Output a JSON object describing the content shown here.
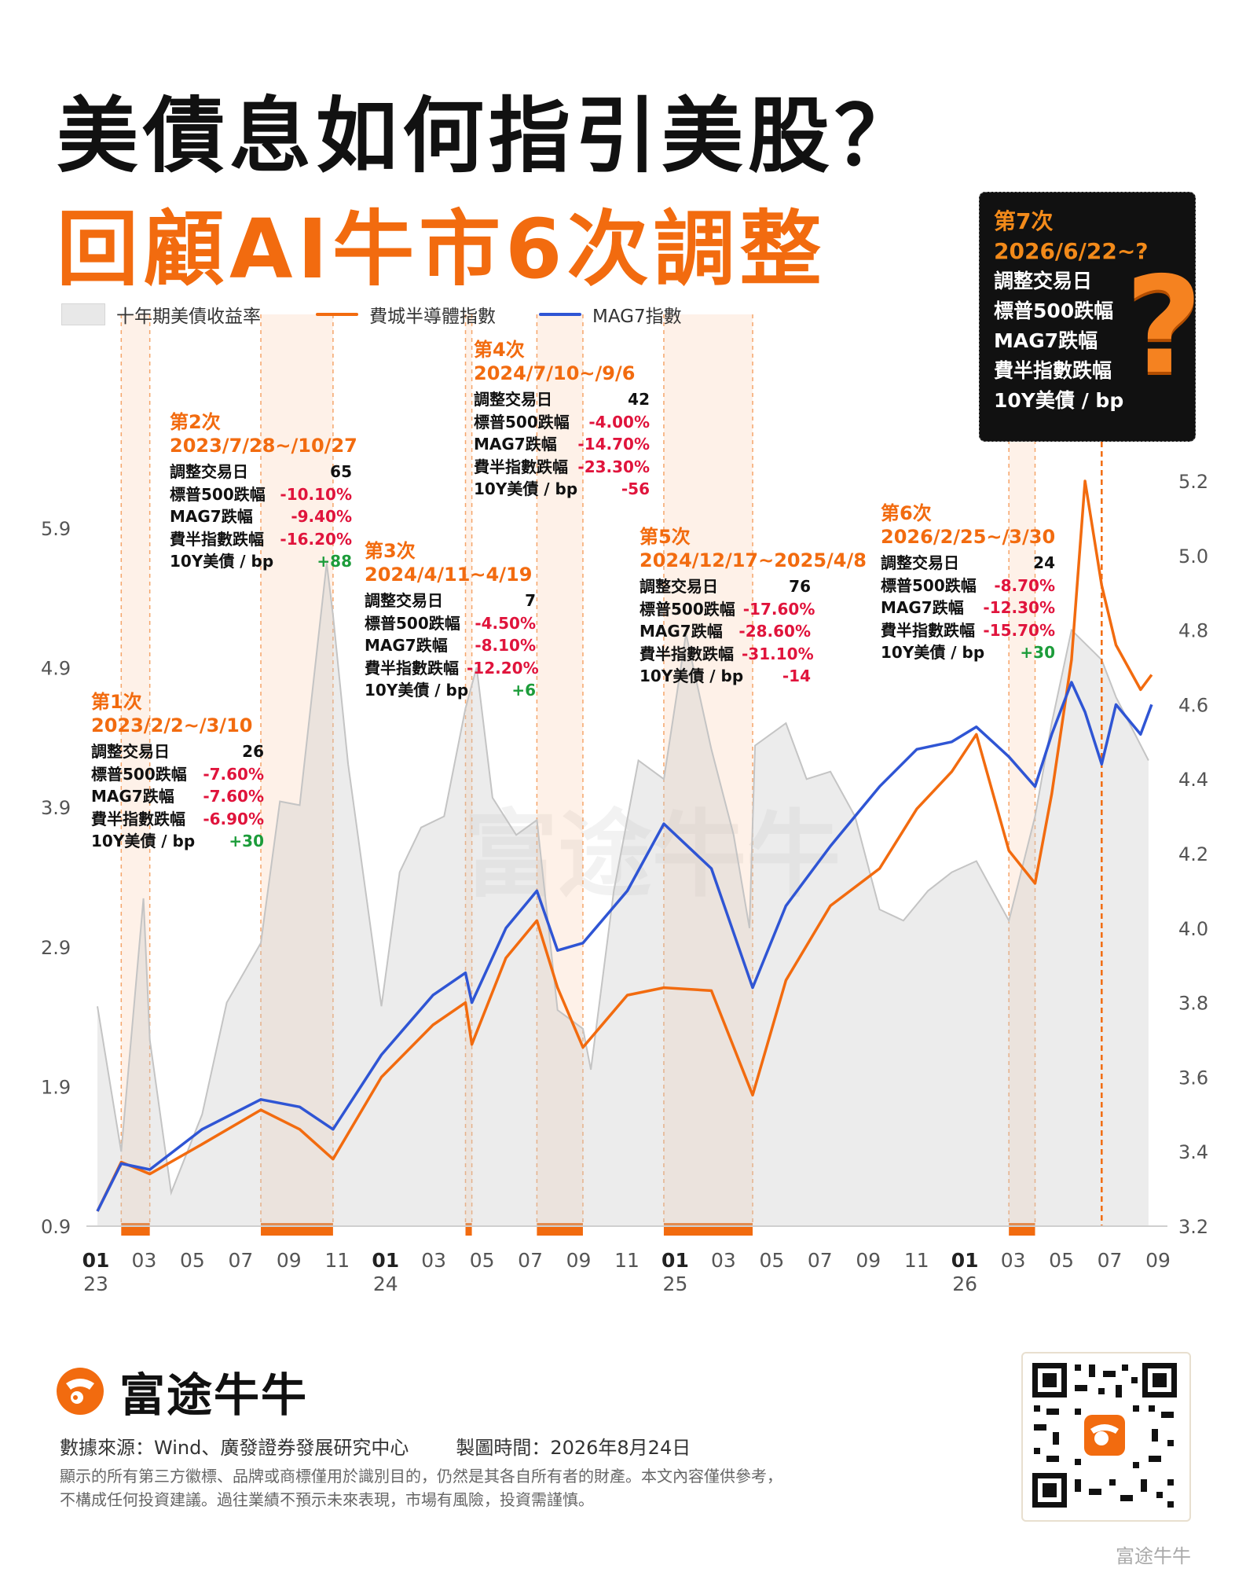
{
  "title_line1": "美債息如何指引美股？",
  "title_line2": "回顧AI牛市6次調整",
  "legend": [
    {
      "label": "十年期美債收益率",
      "color": "#e6e6e6",
      "kind": "area"
    },
    {
      "label": "費城半導體指數",
      "color": "#f26b0f",
      "kind": "line"
    },
    {
      "label": "MAG7指數",
      "color": "#2f55d4",
      "kind": "line"
    }
  ],
  "colors": {
    "accent": "#f26b0f",
    "negative": "#e0143c",
    "positive": "#1c9c3a",
    "mag7": "#2f55d4",
    "yield_area": "#e6e6e6"
  },
  "row_labels": {
    "days": "調整交易日",
    "sp500": "標普500跌幅",
    "mag7": "MAG7跌幅",
    "sox": "費半指數跌幅",
    "yield": "10Y美債 / bp"
  },
  "corrections": [
    {
      "name": "第1次",
      "range": "2023/2/2~/3/10",
      "days": "26",
      "sp500": "-7.60%",
      "mag7": "-7.60%",
      "sox": "-6.90%",
      "yield": "+30"
    },
    {
      "name": "第2次",
      "range": "2023/7/28~/10/27",
      "days": "65",
      "sp500": "-10.10%",
      "mag7": "-9.40%",
      "sox": "-16.20%",
      "yield": "+88"
    },
    {
      "name": "第3次",
      "range": "2024/4/11~4/19",
      "days": "7",
      "sp500": "-4.50%",
      "mag7": "-8.10%",
      "sox": "-12.20%",
      "yield": "+6"
    },
    {
      "name": "第4次",
      "range": "2024/7/10~/9/6",
      "days": "42",
      "sp500": "-4.00%",
      "mag7": "-14.70%",
      "sox": "-23.30%",
      "yield": "-56"
    },
    {
      "name": "第5次",
      "range": "2024/12/17~2025/4/8",
      "days": "76",
      "sp500": "-17.60%",
      "mag7": "-28.60%",
      "sox": "-31.10%",
      "yield": "-14"
    },
    {
      "name": "第6次",
      "range": "2026/2/25~/3/30",
      "days": "24",
      "sp500": "-8.70%",
      "mag7": "-12.30%",
      "sox": "-15.70%",
      "yield": "+30"
    }
  ],
  "next_correction": {
    "name": "第7次",
    "range": "2026/6/22~?",
    "rows": [
      "調整交易日",
      "標普500跌幅",
      "MAG7跌幅",
      "費半指數跌幅",
      "10Y美債 / bp"
    ],
    "mark": "?"
  },
  "chart_data": {
    "type": "line",
    "x_ticks": [
      {
        "m": "01",
        "y": "23"
      },
      {
        "m": "03",
        "y": ""
      },
      {
        "m": "05",
        "y": ""
      },
      {
        "m": "07",
        "y": ""
      },
      {
        "m": "09",
        "y": ""
      },
      {
        "m": "11",
        "y": ""
      },
      {
        "m": "01",
        "y": "24"
      },
      {
        "m": "03",
        "y": ""
      },
      {
        "m": "05",
        "y": ""
      },
      {
        "m": "07",
        "y": ""
      },
      {
        "m": "09",
        "y": ""
      },
      {
        "m": "11",
        "y": ""
      },
      {
        "m": "01",
        "y": "25"
      },
      {
        "m": "03",
        "y": ""
      },
      {
        "m": "05",
        "y": ""
      },
      {
        "m": "07",
        "y": ""
      },
      {
        "m": "09",
        "y": ""
      },
      {
        "m": "11",
        "y": ""
      },
      {
        "m": "01",
        "y": "26"
      },
      {
        "m": "03",
        "y": ""
      },
      {
        "m": "05",
        "y": ""
      },
      {
        "m": "07",
        "y": ""
      },
      {
        "m": "09",
        "y": ""
      }
    ],
    "y_left_ticks": [
      "5.9",
      "4.9",
      "3.9",
      "2.9",
      "1.9",
      "0.9"
    ],
    "y_right_ticks": [
      "5.2",
      "5.0",
      "4.8",
      "4.6",
      "4.4",
      "4.2",
      "4.0",
      "3.8",
      "3.6",
      "3.4",
      "3.2"
    ],
    "y_left_range": [
      0.9,
      5.9
    ],
    "y_right_range": [
      3.2,
      5.2
    ],
    "x_range": [
      "2023-01-01",
      "2026-09-01"
    ],
    "shaded_periods": [
      [
        "2023-02-02",
        "2023-03-10"
      ],
      [
        "2023-07-28",
        "2023-10-27"
      ],
      [
        "2024-04-11",
        "2024-04-19"
      ],
      [
        "2024-07-10",
        "2024-09-06"
      ],
      [
        "2024-12-17",
        "2025-04-08"
      ],
      [
        "2026-02-25",
        "2026-03-30"
      ]
    ],
    "current_marker": "2026-06-22",
    "series": [
      {
        "name": "十年期美債收益率",
        "axis": "right",
        "x": [
          "2023-01-03",
          "2023-02-02",
          "2023-03-02",
          "2023-03-10",
          "2023-04-06",
          "2023-05-15",
          "2023-06-15",
          "2023-07-28",
          "2023-08-21",
          "2023-09-15",
          "2023-10-19",
          "2023-10-27",
          "2023-11-15",
          "2023-12-27",
          "2024-01-19",
          "2024-02-15",
          "2024-03-15",
          "2024-04-11",
          "2024-04-25",
          "2024-05-15",
          "2024-06-14",
          "2024-07-10",
          "2024-08-05",
          "2024-09-06",
          "2024-09-16",
          "2024-10-15",
          "2024-11-15",
          "2024-12-17",
          "2025-01-14",
          "2025-02-15",
          "2025-03-15",
          "2025-04-04",
          "2025-04-08",
          "2025-04-11",
          "2025-05-20",
          "2025-06-15",
          "2025-07-15",
          "2025-08-15",
          "2025-09-15",
          "2025-10-15",
          "2025-11-15",
          "2025-12-15",
          "2026-01-15",
          "2026-02-25",
          "2026-03-30",
          "2026-04-20",
          "2026-05-15",
          "2026-06-22",
          "2026-07-10",
          "2026-08-20"
        ],
        "values": [
          3.79,
          3.4,
          4.08,
          3.7,
          3.29,
          3.5,
          3.8,
          3.96,
          4.34,
          4.33,
          4.98,
          4.84,
          4.44,
          3.79,
          4.15,
          4.27,
          4.3,
          4.59,
          4.7,
          4.35,
          4.25,
          4.29,
          3.78,
          3.73,
          3.62,
          4.1,
          4.45,
          4.4,
          4.79,
          4.48,
          4.25,
          4.0,
          4.28,
          4.49,
          4.55,
          4.4,
          4.42,
          4.3,
          4.05,
          4.02,
          4.1,
          4.15,
          4.18,
          4.02,
          4.3,
          4.55,
          4.8,
          4.72,
          4.62,
          4.45
        ]
      },
      {
        "name": "費城半導體指數",
        "axis": "left",
        "x": [
          "2023-01-03",
          "2023-02-02",
          "2023-03-10",
          "2023-05-15",
          "2023-07-28",
          "2023-09-15",
          "2023-10-27",
          "2023-12-27",
          "2024-03-01",
          "2024-04-11",
          "2024-04-19",
          "2024-06-01",
          "2024-07-10",
          "2024-08-05",
          "2024-09-06",
          "2024-11-01",
          "2024-12-17",
          "2025-02-15",
          "2025-04-08",
          "2025-05-20",
          "2025-07-15",
          "2025-09-15",
          "2025-11-01",
          "2025-12-15",
          "2026-01-15",
          "2026-02-25",
          "2026-03-30",
          "2026-04-20",
          "2026-05-15",
          "2026-06-01",
          "2026-06-22",
          "2026-07-10",
          "2026-08-10",
          "2026-08-24"
        ],
        "values": [
          1.0,
          1.33,
          1.25,
          1.45,
          1.68,
          1.55,
          1.35,
          1.9,
          2.25,
          2.4,
          2.12,
          2.7,
          2.95,
          2.5,
          2.1,
          2.45,
          2.5,
          2.48,
          1.78,
          2.55,
          3.05,
          3.3,
          3.7,
          3.95,
          4.2,
          3.42,
          3.2,
          3.8,
          4.7,
          5.9,
          5.2,
          4.8,
          4.5,
          4.6
        ]
      },
      {
        "name": "MAG7指數",
        "axis": "left",
        "x": [
          "2023-01-03",
          "2023-02-02",
          "2023-03-10",
          "2023-05-15",
          "2023-07-28",
          "2023-09-15",
          "2023-10-27",
          "2023-12-27",
          "2024-03-01",
          "2024-04-11",
          "2024-04-19",
          "2024-06-01",
          "2024-07-10",
          "2024-08-05",
          "2024-09-06",
          "2024-11-01",
          "2024-12-17",
          "2025-02-15",
          "2025-04-08",
          "2025-05-20",
          "2025-07-15",
          "2025-09-15",
          "2025-11-01",
          "2025-12-15",
          "2026-01-15",
          "2026-02-25",
          "2026-03-30",
          "2026-04-20",
          "2026-05-15",
          "2026-06-01",
          "2026-06-22",
          "2026-07-10",
          "2026-08-10",
          "2026-08-24"
        ],
        "values": [
          1.0,
          1.32,
          1.28,
          1.55,
          1.75,
          1.7,
          1.55,
          2.05,
          2.45,
          2.6,
          2.4,
          2.9,
          3.15,
          2.75,
          2.8,
          3.15,
          3.6,
          3.3,
          2.5,
          3.05,
          3.45,
          3.85,
          4.1,
          4.15,
          4.25,
          4.05,
          3.85,
          4.2,
          4.55,
          4.35,
          4.0,
          4.4,
          4.2,
          4.4
        ]
      }
    ]
  },
  "watermark": "富途牛牛",
  "footer": {
    "brand": "富途牛牛",
    "source": "數據來源：Wind、廣發證券發展研究中心",
    "made": "製圖時間：2026年8月24日",
    "disclaimer1": "顯示的所有第三方徽標、品牌或商標僅用於識別目的，仍然是其各自所有者的財產。本文內容僅供參考，",
    "disclaimer2": "不構成任何投資建議。過往業績不預示未來表現，市場有風險，投資需謹慎。",
    "corner": "富途牛牛"
  }
}
